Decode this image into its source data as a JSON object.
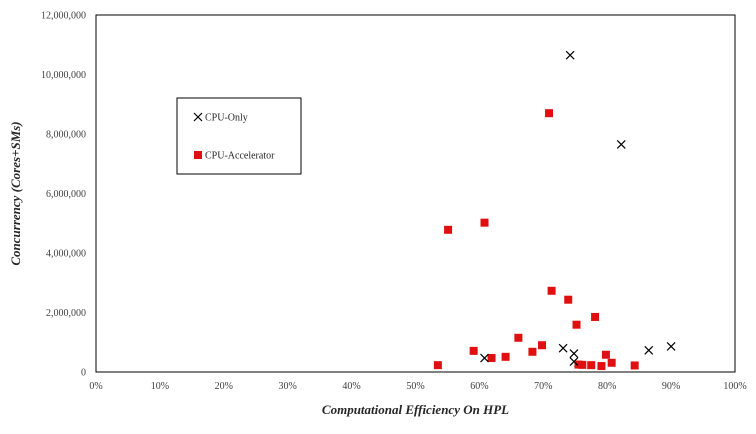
{
  "chart_data": {
    "type": "scatter",
    "xlabel": "Computational Efficiency On HPL",
    "ylabel": "Concurrency (Cores+SMs)",
    "xlim": [
      0,
      100
    ],
    "ylim": [
      0,
      12000000
    ],
    "x_ticks": [
      0,
      10,
      20,
      30,
      40,
      50,
      60,
      70,
      80,
      90,
      100
    ],
    "y_ticks": [
      0,
      2000000,
      4000000,
      6000000,
      8000000,
      10000000,
      12000000
    ],
    "x_tick_labels": [
      "0%",
      "10%",
      "20%",
      "30%",
      "40%",
      "50%",
      "60%",
      "70%",
      "80%",
      "90%",
      "100%"
    ],
    "y_tick_labels": [
      "0",
      "2,000,000",
      "4,000,000",
      "6,000,000",
      "8,000,000",
      "10,000,000",
      "12,000,000"
    ],
    "grid": false,
    "legend_position": "upper-left, boxed",
    "series": [
      {
        "name": "CPU-Only",
        "marker": "x",
        "color": "#000000",
        "points": [
          {
            "x": 74.2,
            "y": 10650000
          },
          {
            "x": 82.2,
            "y": 7650000
          },
          {
            "x": 60.8,
            "y": 470000
          },
          {
            "x": 73.1,
            "y": 800000
          },
          {
            "x": 74.8,
            "y": 620000
          },
          {
            "x": 74.8,
            "y": 350000
          },
          {
            "x": 86.5,
            "y": 730000
          },
          {
            "x": 90.0,
            "y": 860000
          }
        ]
      },
      {
        "name": "CPU-Accelerator",
        "marker": "square",
        "color": "#e01010",
        "points": [
          {
            "x": 70.9,
            "y": 8700000
          },
          {
            "x": 60.8,
            "y": 5020000
          },
          {
            "x": 55.1,
            "y": 4780000
          },
          {
            "x": 71.3,
            "y": 2730000
          },
          {
            "x": 73.9,
            "y": 2430000
          },
          {
            "x": 78.1,
            "y": 1850000
          },
          {
            "x": 75.2,
            "y": 1590000
          },
          {
            "x": 66.1,
            "y": 1150000
          },
          {
            "x": 69.8,
            "y": 900000
          },
          {
            "x": 59.1,
            "y": 710000
          },
          {
            "x": 68.3,
            "y": 680000
          },
          {
            "x": 79.8,
            "y": 580000
          },
          {
            "x": 64.1,
            "y": 510000
          },
          {
            "x": 61.9,
            "y": 470000
          },
          {
            "x": 80.7,
            "y": 310000
          },
          {
            "x": 75.5,
            "y": 250000
          },
          {
            "x": 76.1,
            "y": 240000
          },
          {
            "x": 77.5,
            "y": 230000
          },
          {
            "x": 79.1,
            "y": 200000
          },
          {
            "x": 84.3,
            "y": 220000
          },
          {
            "x": 53.5,
            "y": 230000
          }
        ]
      }
    ]
  }
}
